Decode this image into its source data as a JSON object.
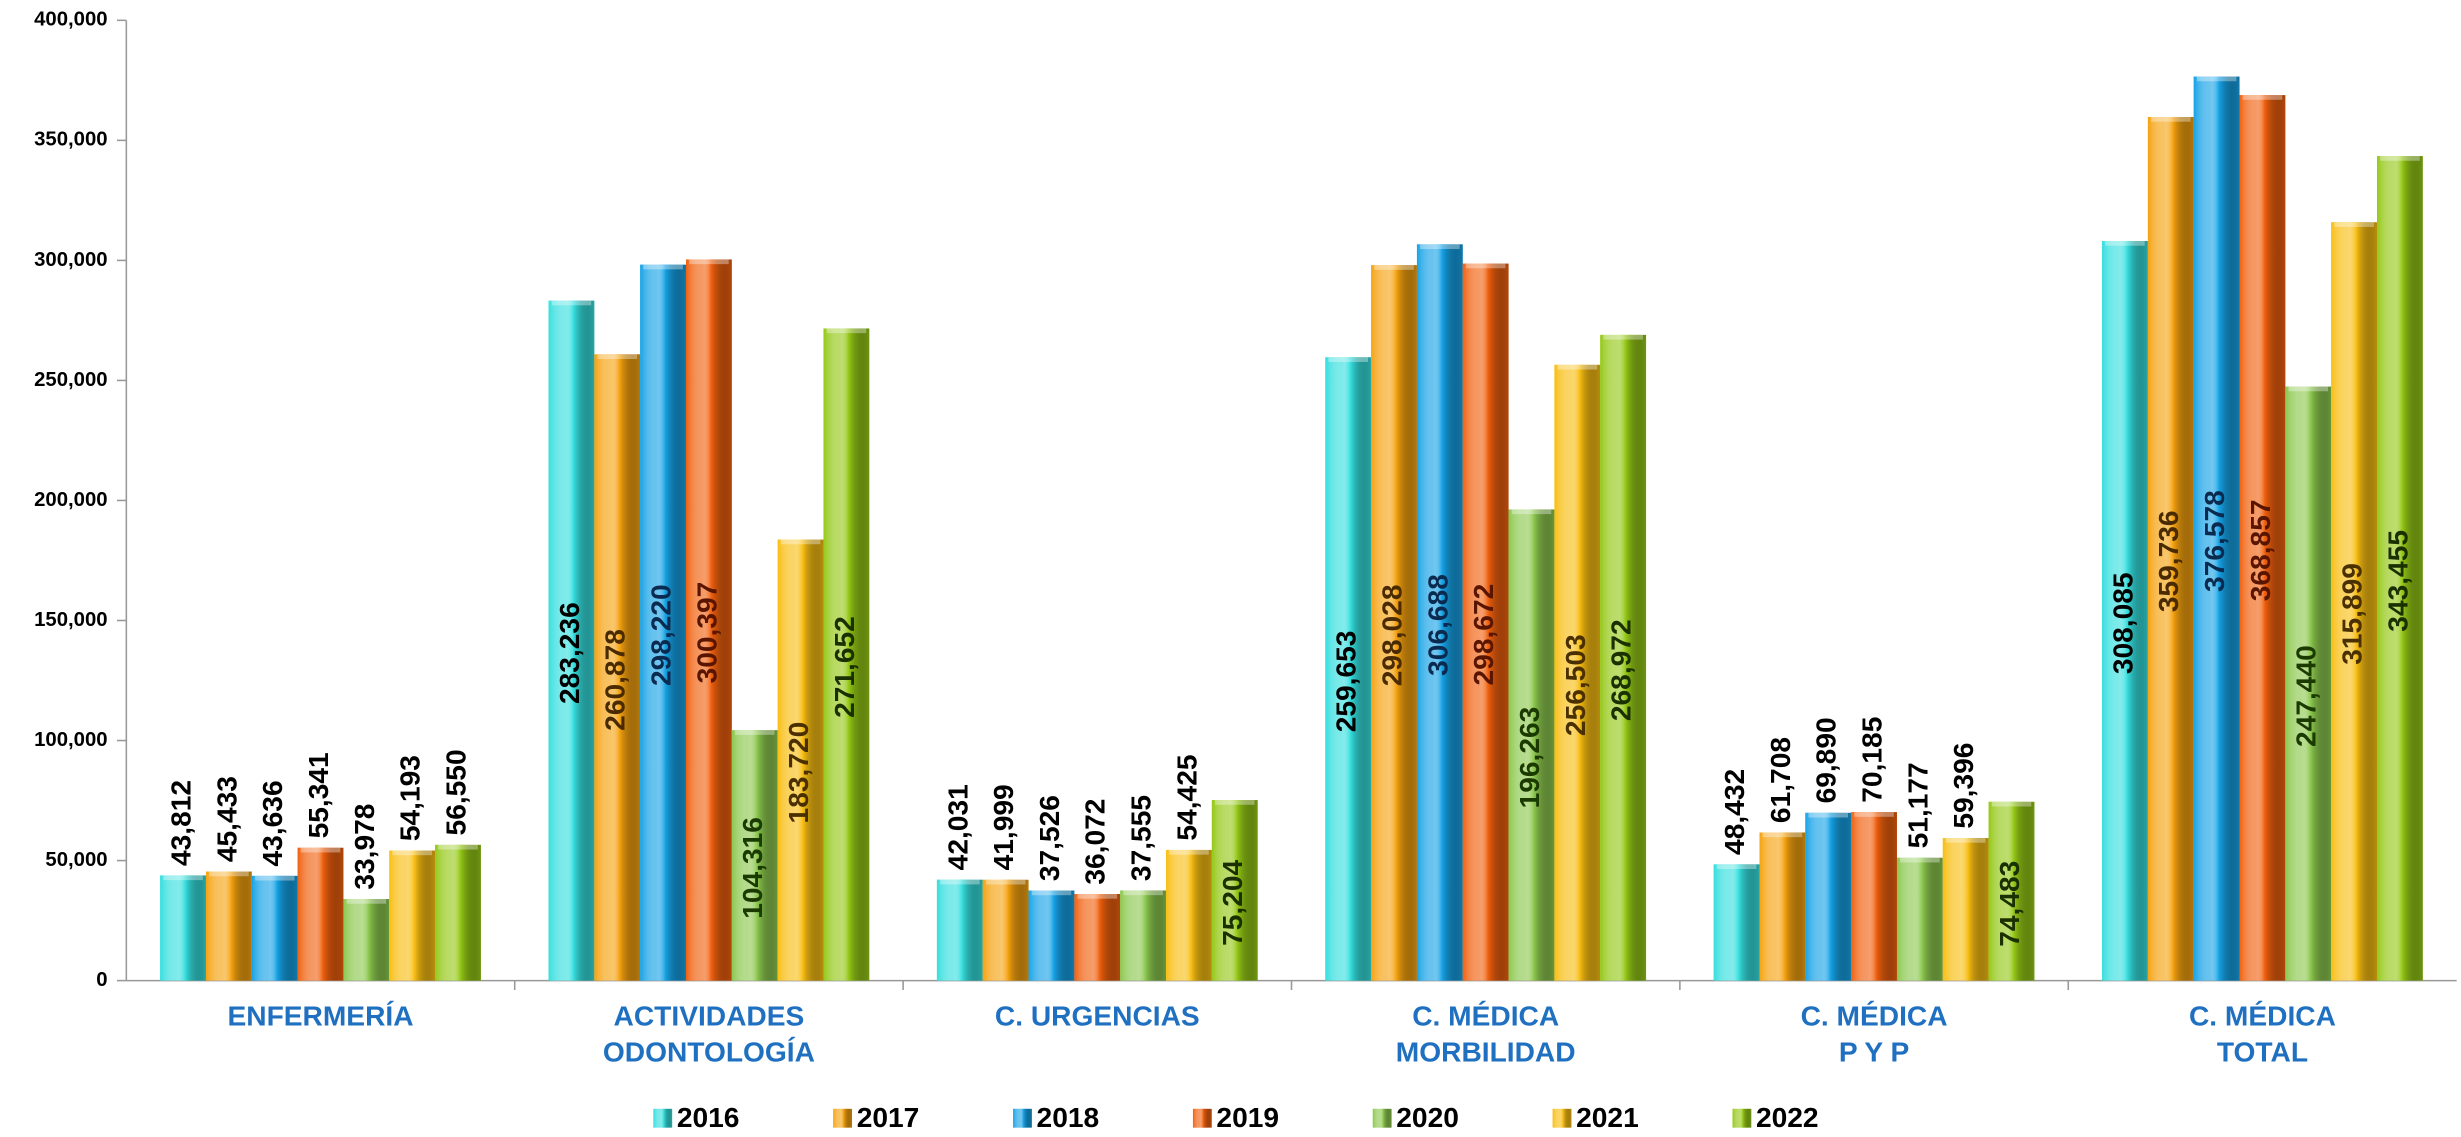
{
  "chart_data": {
    "type": "bar",
    "categories": [
      [
        "ENFERMERÍA"
      ],
      [
        "ACTIVIDADES",
        "ODONTOLOGÍA"
      ],
      [
        "C. URGENCIAS"
      ],
      [
        "C. MÉDICA",
        "MORBILIDAD"
      ],
      [
        "C. MÉDICA",
        "P Y P"
      ],
      [
        "C. MÉDICA",
        "TOTAL"
      ]
    ],
    "series": [
      {
        "name": "2016",
        "color": "#35dede",
        "label_color": "#000000",
        "values": [
          43812,
          283236,
          42031,
          259653,
          48432,
          308085
        ],
        "value_labels": [
          "43,812",
          "283,236",
          "42,031",
          "259,653",
          "48,432",
          "308,085"
        ]
      },
      {
        "name": "2017",
        "color": "#f5a20f",
        "label_color": "#4a2a00",
        "values": [
          45433,
          260878,
          41999,
          298028,
          61708,
          359736
        ],
        "value_labels": [
          "45,433",
          "260,878",
          "41,999",
          "298,028",
          "61,708",
          "359,736"
        ]
      },
      {
        "name": "2018",
        "color": "#16a2e6",
        "label_color": "#0a2a50",
        "values": [
          43636,
          298220,
          37526,
          306688,
          69890,
          376578
        ],
        "value_labels": [
          "43,636",
          "298,220",
          "37,526",
          "306,688",
          "69,890",
          "376,578"
        ]
      },
      {
        "name": "2019",
        "color": "#f0600e",
        "label_color": "#5a1500",
        "values": [
          55341,
          300397,
          36072,
          298672,
          70185,
          368857
        ],
        "value_labels": [
          "55,341",
          "300,397",
          "36,072",
          "298,672",
          "70,185",
          "368,857"
        ]
      },
      {
        "name": "2020",
        "color": "#8cc84e",
        "label_color": "#1a3a00",
        "values": [
          33978,
          104316,
          37555,
          196263,
          51177,
          247440
        ],
        "value_labels": [
          "33,978",
          "104,316",
          "37,555",
          "196,263",
          "51,177",
          "247,440"
        ]
      },
      {
        "name": "2021",
        "color": "#f8be12",
        "label_color": "#4a3000",
        "values": [
          54193,
          183720,
          54425,
          256503,
          59396,
          315899
        ],
        "value_labels": [
          "54,193",
          "183,720",
          "54,425",
          "256,503",
          "59,396",
          "315,899"
        ]
      },
      {
        "name": "2022",
        "color": "#94c816",
        "label_color": "#1a3000",
        "values": [
          56550,
          271652,
          75204,
          268972,
          74483,
          343455
        ],
        "value_labels": [
          "56,550",
          "271,652",
          "75,204",
          "268,972",
          "74,483",
          "343,455"
        ]
      }
    ],
    "ylim": [
      0,
      400000
    ],
    "yticks": [
      0,
      {
        "value": 50000,
        "label": "50,000"
      },
      {
        "value": 100000,
        "label": "100,000"
      },
      {
        "value": 150000,
        "label": "150,000"
      },
      {
        "value": 200000,
        "label": "200,000"
      },
      {
        "value": 250000,
        "label": "250,000"
      },
      {
        "value": 300000,
        "label": "300,000"
      },
      {
        "value": 350000,
        "label": "350,000"
      },
      {
        "value": 400000,
        "label": "400,000"
      }
    ],
    "grid": false,
    "legend": "bottom"
  }
}
